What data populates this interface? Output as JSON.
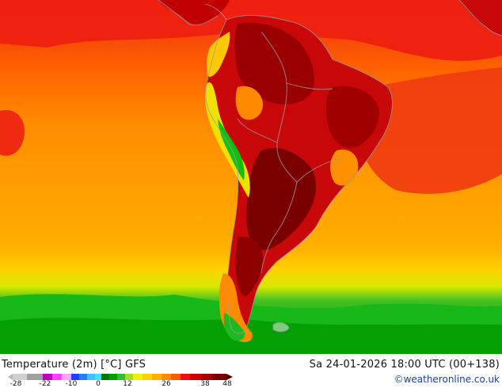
{
  "header": {
    "title": "Temperature (2m) [°C] GFS",
    "valid_time": "Sa 24-01-2026 18:00 UTC (00+138)",
    "credit": "©weatheronline.co.uk"
  },
  "legend": {
    "unit": "°C",
    "ticks": [
      "-28",
      "-22",
      "-10",
      "0",
      "12",
      "26",
      "38",
      "48"
    ],
    "colors": {
      "very_cold": "#b4b4b4",
      "purple": "#c000c0",
      "magenta": "#ff40ff",
      "blue": "#2040ff",
      "cyan": "#40e0ff",
      "dark_green": "#007a00",
      "green": "#30c030",
      "light_green": "#a0e020",
      "yellow": "#f0f000",
      "gold": "#ffc000",
      "orange": "#ff8c00",
      "orange_red": "#ff5a00",
      "red": "#f01010",
      "dark_red": "#c00000",
      "maroon": "#7a0000"
    }
  },
  "map": {
    "region": "South America",
    "field": "2m temperature",
    "colors": {
      "ocean_orange": "#ff8c00",
      "ocean_light": "#ffa400",
      "hot_red": "#e81010",
      "hotter": "#c40808",
      "hottest": "#8a0000",
      "cool_green": "#10c010",
      "deep_green": "#009000",
      "yellow_band": "#f0e000",
      "border": "#9a9aa8"
    }
  }
}
